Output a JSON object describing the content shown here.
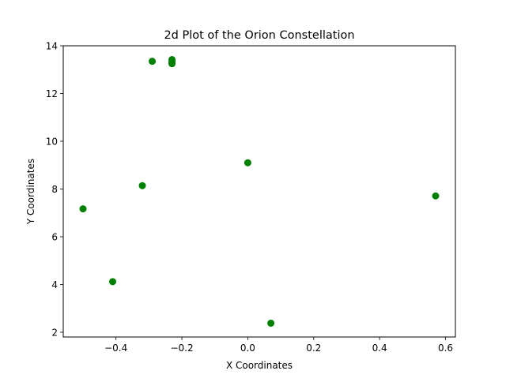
{
  "chart_data": {
    "type": "scatter",
    "title": "2d Plot of the Orion Constellation",
    "xlabel": "X Coordinates",
    "ylabel": "Y Coordinates",
    "xlim": [
      -0.56,
      0.63
    ],
    "ylim": [
      1.8,
      14.0
    ],
    "xticks": [
      -0.4,
      -0.2,
      0.0,
      0.2,
      0.4,
      0.6
    ],
    "xtick_labels": [
      "−0.4",
      "−0.2",
      "0.0",
      "0.2",
      "0.4",
      "0.6"
    ],
    "yticks": [
      2,
      4,
      6,
      8,
      10,
      12,
      14
    ],
    "ytick_labels": [
      "2",
      "4",
      "6",
      "8",
      "10",
      "12",
      "14"
    ],
    "grid": false,
    "series": [
      {
        "color": "#008000",
        "x": [
          -0.41,
          0.57,
          -0.29,
          0.0,
          -0.23,
          -0.32,
          -0.5,
          -0.23,
          -0.23,
          0.07
        ],
        "y": [
          4.12,
          7.71,
          13.35,
          9.1,
          13.42,
          8.14,
          7.17,
          13.25,
          13.32,
          2.38
        ]
      }
    ]
  }
}
